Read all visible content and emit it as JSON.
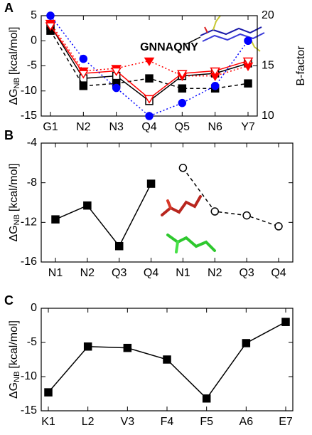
{
  "chart_data": [
    {
      "type": "line",
      "panel_label": "A",
      "y_label": "ΔG",
      "y_label_sub": "NB",
      "y_label_unit": "[kcal/mol]",
      "y2_label": "B-factor",
      "annotation": "GNNAQNY",
      "categories": [
        "G1",
        "N2",
        "N3",
        "Q4",
        "Q5",
        "N6",
        "Y7"
      ],
      "ylim": [
        -15,
        5
      ],
      "yticks": [
        -15,
        -10,
        -5,
        0,
        5
      ],
      "y2lim": [
        10,
        20
      ],
      "y2ticks": [
        10,
        15,
        20
      ],
      "series": [
        {
          "color": "#000000",
          "linestyle": "solid",
          "marker": "square-open",
          "values": [
            3,
            -7.5,
            -7,
            -12,
            -7,
            -6.5,
            -4.5
          ]
        },
        {
          "color": "#000000",
          "linestyle": "dashed",
          "marker": "square-filled",
          "values": [
            2,
            -9,
            -8.5,
            -7.5,
            -9.5,
            -9.5,
            -8.5
          ]
        },
        {
          "color": "#ff0000",
          "linestyle": "dotted",
          "marker": "triangle-filled",
          "values": [
            3.5,
            -6,
            -5.5,
            -4,
            -7,
            -7,
            -5
          ]
        },
        {
          "color": "#ff0000",
          "linestyle": "solid",
          "marker": "triangle-open",
          "values": [
            3,
            -6.5,
            -6,
            -11.5,
            -6.5,
            -6,
            -4
          ]
        },
        {
          "color": "#0000ff",
          "linestyle": "dotted",
          "marker": "circle-filled",
          "axis": "y2",
          "values": [
            20,
            15.7,
            12.8,
            10,
            11.3,
            13,
            17.5
          ]
        }
      ]
    },
    {
      "type": "line",
      "panel_label": "B",
      "y_label": "ΔG",
      "y_label_sub": "NB",
      "y_label_unit": "[kcal/mol]",
      "categories": [
        "N1",
        "N2",
        "Q3",
        "Q4",
        "N1",
        "N2",
        "Q3",
        "Q4"
      ],
      "ylim": [
        -16,
        -4
      ],
      "yticks": [
        -16,
        -12,
        -8,
        -4
      ],
      "series": [
        {
          "color": "#000000",
          "linestyle": "solid",
          "marker": "square-filled",
          "values": [
            -11.7,
            -10.3,
            -14.4,
            -8.1,
            null,
            null,
            null,
            null
          ]
        },
        {
          "color": "#000000",
          "linestyle": "dashed",
          "marker": "circle-open",
          "values": [
            null,
            null,
            null,
            null,
            -6.5,
            -10.9,
            -11.3,
            -12.4
          ]
        }
      ]
    },
    {
      "type": "line",
      "panel_label": "C",
      "y_label": "ΔG",
      "y_label_sub": "NB",
      "y_label_unit": "[kcal/mol]",
      "categories": [
        "K1",
        "L2",
        "V3",
        "F4",
        "F5",
        "A6",
        "E7"
      ],
      "ylim": [
        -15,
        0
      ],
      "yticks": [
        -15,
        -10,
        -5,
        0
      ],
      "series": [
        {
          "color": "#000000",
          "linestyle": "solid",
          "marker": "square-filled",
          "values": [
            -12.3,
            -5.6,
            -5.8,
            -7.5,
            -13.2,
            -5.1,
            -2
          ]
        }
      ]
    }
  ]
}
